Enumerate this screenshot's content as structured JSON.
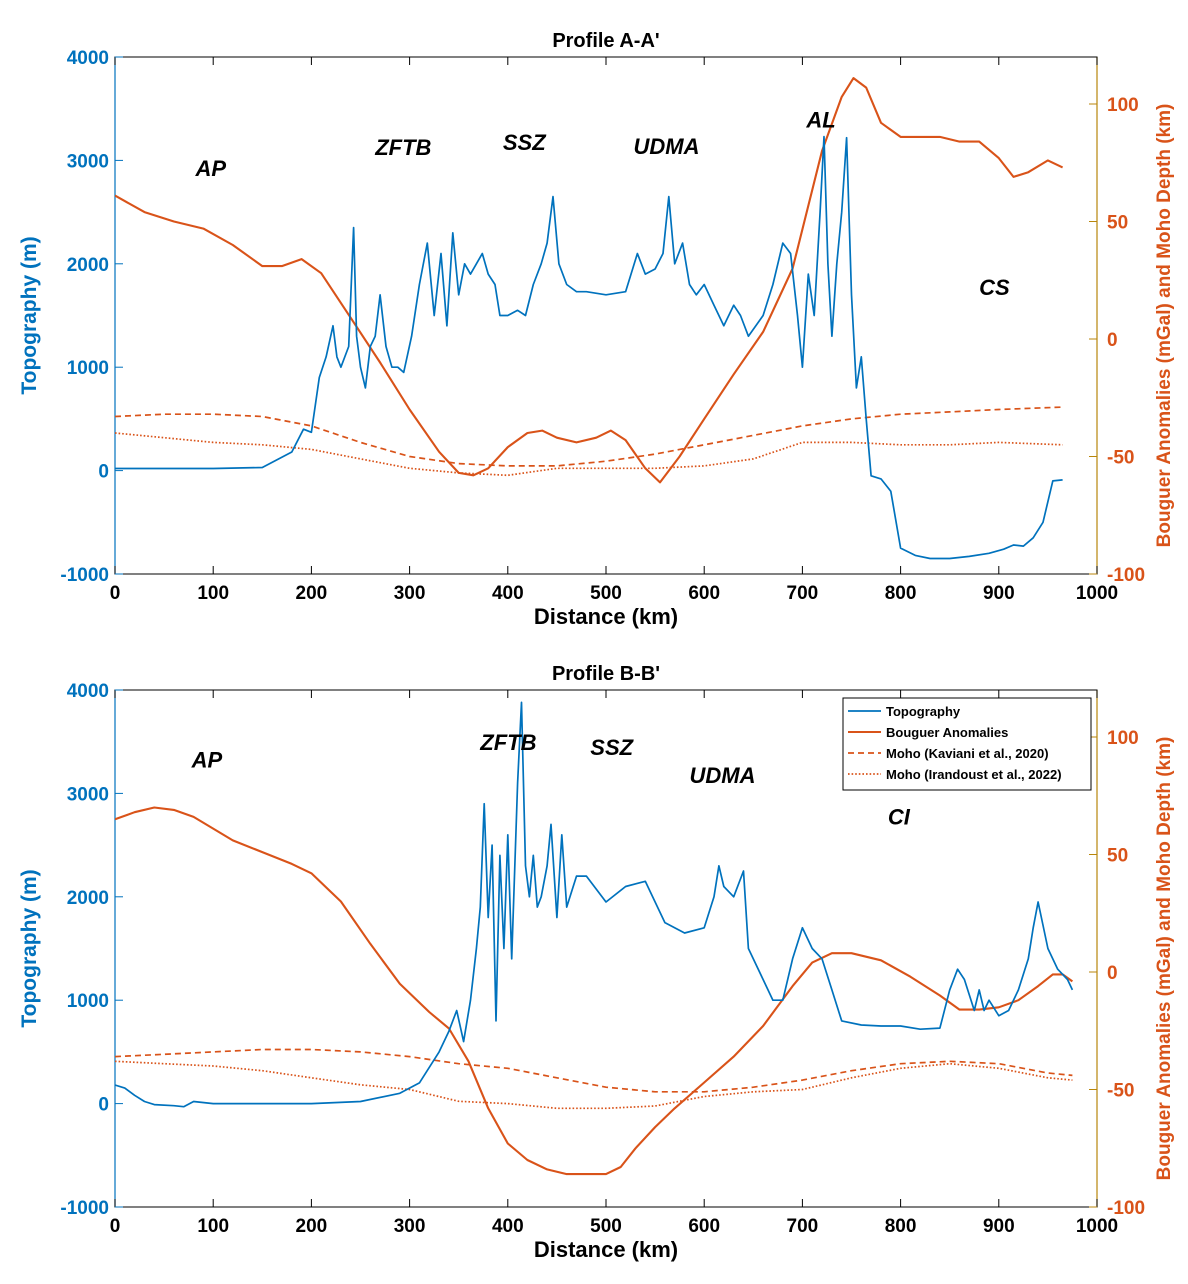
{
  "colors": {
    "topography": "#0072BD",
    "bouguer": "#D95319",
    "moho_right_axis": "#D95319",
    "axis": "#000000"
  },
  "chart_data": [
    {
      "type": "line",
      "title": "Profile A-A'",
      "xlabel": "Distance (km)",
      "ylabel": "Topography (m)",
      "ylabel_right": "Bouguer Anomalies (mGal) and Moho Depth (km)",
      "xlim": [
        0,
        1000
      ],
      "ylim": [
        -1000,
        4000
      ],
      "ylim_right": [
        -100,
        120
      ],
      "x_ticks": [
        0,
        100,
        200,
        300,
        400,
        500,
        600,
        700,
        800,
        900,
        1000
      ],
      "y_ticks": [
        -1000,
        0,
        1000,
        2000,
        3000,
        4000
      ],
      "y_ticks_right": [
        -100,
        -50,
        0,
        50,
        100
      ],
      "grid": false,
      "annotations": [
        {
          "text": "AP",
          "x": 82,
          "y": 2850
        },
        {
          "text": "ZFTB",
          "x": 265,
          "y": 3050
        },
        {
          "text": "SSZ",
          "x": 395,
          "y": 3100
        },
        {
          "text": "UDMA",
          "x": 528,
          "y": 3060
        },
        {
          "text": "AL",
          "x": 704,
          "y": 3320
        },
        {
          "text": "CS",
          "x": 880,
          "y": 1700
        }
      ],
      "series": [
        {
          "name": "Topography",
          "axis": "left",
          "style": "solid",
          "x": [
            0,
            50,
            100,
            150,
            180,
            192,
            200,
            208,
            215,
            222,
            226,
            230,
            238,
            243,
            246,
            250,
            255,
            260,
            265,
            270,
            276,
            282,
            288,
            294,
            302,
            310,
            318,
            325,
            332,
            338,
            344,
            350,
            356,
            362,
            368,
            374,
            380,
            387,
            392,
            400,
            410,
            418,
            426,
            434,
            440,
            446,
            452,
            460,
            470,
            480,
            500,
            520,
            532,
            540,
            550,
            558,
            564,
            570,
            578,
            585,
            592,
            600,
            610,
            620,
            630,
            637,
            645,
            660,
            670,
            680,
            688,
            695,
            700,
            706,
            712,
            718,
            722,
            726,
            730,
            735,
            740,
            745,
            750,
            755,
            760,
            765,
            770,
            780,
            790,
            800,
            815,
            830,
            850,
            870,
            890,
            905,
            915,
            925,
            935,
            945,
            955,
            965
          ],
          "y": [
            20,
            20,
            20,
            30,
            180,
            400,
            370,
            900,
            1100,
            1400,
            1100,
            1000,
            1200,
            2350,
            1300,
            1000,
            800,
            1200,
            1300,
            1700,
            1200,
            1000,
            1000,
            950,
            1300,
            1800,
            2200,
            1500,
            2100,
            1400,
            2300,
            1700,
            2000,
            1900,
            2000,
            2100,
            1900,
            1800,
            1500,
            1500,
            1550,
            1500,
            1800,
            2000,
            2200,
            2650,
            2000,
            1800,
            1730,
            1730,
            1700,
            1730,
            2100,
            1900,
            1950,
            2100,
            2650,
            2000,
            2200,
            1800,
            1700,
            1800,
            1600,
            1400,
            1600,
            1500,
            1300,
            1500,
            1800,
            2200,
            2100,
            1500,
            1000,
            1900,
            1500,
            2500,
            3230,
            2000,
            1300,
            2000,
            2500,
            3220,
            1700,
            800,
            1100,
            500,
            -50,
            -80,
            -200,
            -750,
            -820,
            -850,
            -850,
            -830,
            -800,
            -760,
            -720,
            -730,
            -650,
            -500,
            -100,
            -90
          ]
        },
        {
          "name": "Bouguer Anomalies",
          "axis": "right",
          "style": "solid",
          "x": [
            0,
            30,
            60,
            90,
            120,
            150,
            170,
            190,
            210,
            240,
            270,
            300,
            330,
            350,
            365,
            380,
            400,
            420,
            435,
            450,
            470,
            490,
            505,
            520,
            540,
            555,
            575,
            600,
            630,
            660,
            690,
            720,
            740,
            752,
            765,
            780,
            800,
            840,
            860,
            880,
            900,
            915,
            930,
            950,
            965
          ],
          "y": [
            61,
            54,
            50,
            47,
            40,
            31,
            31,
            34,
            28,
            9,
            -10,
            -30,
            -48,
            -57,
            -58,
            -55,
            -46,
            -40,
            -39,
            -42,
            -44,
            -42,
            -39,
            -43,
            -55,
            -61,
            -50,
            -34,
            -15,
            3,
            30,
            80,
            103,
            111,
            107,
            92,
            86,
            86,
            84,
            84,
            77,
            69,
            71,
            76,
            73
          ]
        },
        {
          "name": "Moho (Kaviani et al., 2020)",
          "axis": "right",
          "style": "dashed",
          "x": [
            0,
            50,
            100,
            150,
            200,
            250,
            300,
            350,
            400,
            450,
            500,
            550,
            600,
            650,
            700,
            750,
            800,
            850,
            900,
            965
          ],
          "y": [
            -33,
            -32,
            -32,
            -33,
            -37,
            -44,
            -50,
            -53,
            -54,
            -54,
            -52,
            -49,
            -45,
            -41,
            -37,
            -34,
            -32,
            -31,
            -30,
            -29
          ]
        },
        {
          "name": "Moho (Irandoust et al., 2022)",
          "axis": "right",
          "style": "dotted",
          "x": [
            0,
            50,
            100,
            150,
            200,
            250,
            300,
            350,
            400,
            450,
            500,
            550,
            600,
            650,
            700,
            750,
            800,
            850,
            900,
            965
          ],
          "y": [
            -40,
            -42,
            -44,
            -45,
            -47,
            -51,
            -55,
            -57,
            -58,
            -55,
            -55,
            -55,
            -54,
            -51,
            -44,
            -44,
            -45,
            -45,
            -44,
            -45
          ]
        }
      ]
    },
    {
      "type": "line",
      "title": "Profile B-B'",
      "xlabel": "Distance (km)",
      "ylabel": "Topography (m)",
      "ylabel_right": "Bouguer Anomalies (mGal) and Moho Depth (km)",
      "xlim": [
        0,
        1000
      ],
      "ylim": [
        -1000,
        4000
      ],
      "ylim_right": [
        -100,
        120
      ],
      "x_ticks": [
        0,
        100,
        200,
        300,
        400,
        500,
        600,
        700,
        800,
        900,
        1000
      ],
      "y_ticks": [
        -1000,
        0,
        1000,
        2000,
        3000,
        4000
      ],
      "y_ticks_right": [
        -100,
        -50,
        0,
        50,
        100
      ],
      "grid": false,
      "legend": {
        "position": "top-right",
        "entries": [
          "Topography",
          "Bouguer Anomalies",
          "Moho (Kaviani et al., 2020)",
          "Moho (Irandoust et al., 2022)"
        ]
      },
      "annotations": [
        {
          "text": "AP",
          "x": 78,
          "y": 3250
        },
        {
          "text": "ZFTB",
          "x": 372,
          "y": 3420
        },
        {
          "text": "SSZ",
          "x": 484,
          "y": 3370
        },
        {
          "text": "UDMA",
          "x": 585,
          "y": 3100
        },
        {
          "text": "CI",
          "x": 787,
          "y": 2700
        }
      ],
      "series": [
        {
          "name": "Topography",
          "axis": "left",
          "style": "solid",
          "x": [
            0,
            10,
            20,
            30,
            40,
            60,
            70,
            80,
            100,
            150,
            200,
            250,
            290,
            310,
            330,
            340,
            348,
            355,
            362,
            368,
            372,
            376,
            380,
            384,
            388,
            392,
            396,
            400,
            404,
            410,
            414,
            418,
            422,
            426,
            430,
            434,
            440,
            444,
            450,
            455,
            460,
            470,
            480,
            500,
            520,
            540,
            560,
            580,
            600,
            610,
            615,
            620,
            630,
            640,
            645,
            660,
            670,
            680,
            690,
            700,
            710,
            720,
            730,
            740,
            760,
            780,
            800,
            820,
            840,
            850,
            858,
            865,
            875,
            880,
            885,
            890,
            900,
            910,
            920,
            930,
            935,
            940,
            950,
            960,
            970,
            975
          ],
          "y": [
            180,
            150,
            80,
            20,
            -10,
            -20,
            -30,
            20,
            0,
            0,
            0,
            20,
            100,
            200,
            500,
            700,
            900,
            600,
            1000,
            1500,
            1900,
            2900,
            1800,
            2500,
            800,
            2400,
            1500,
            2600,
            1400,
            3100,
            3880,
            2300,
            2000,
            2400,
            1900,
            2000,
            2300,
            2700,
            1800,
            2600,
            1900,
            2200,
            2200,
            1950,
            2100,
            2150,
            1750,
            1650,
            1700,
            2000,
            2300,
            2100,
            2000,
            2250,
            1500,
            1200,
            1000,
            1000,
            1400,
            1700,
            1500,
            1400,
            1100,
            800,
            760,
            750,
            750,
            720,
            730,
            1100,
            1300,
            1200,
            900,
            1100,
            900,
            1000,
            850,
            900,
            1100,
            1400,
            1700,
            1950,
            1500,
            1300,
            1200,
            1100
          ]
        },
        {
          "name": "Bouguer Anomalies",
          "axis": "right",
          "style": "solid",
          "x": [
            0,
            20,
            40,
            60,
            80,
            100,
            120,
            150,
            180,
            200,
            230,
            260,
            290,
            320,
            340,
            360,
            380,
            400,
            420,
            440,
            460,
            480,
            500,
            515,
            530,
            550,
            570,
            600,
            630,
            660,
            690,
            710,
            730,
            750,
            780,
            810,
            840,
            860,
            880,
            900,
            920,
            940,
            955,
            965,
            975
          ],
          "y": [
            65,
            68,
            70,
            69,
            66,
            61,
            56,
            51,
            46,
            42,
            30,
            12,
            -5,
            -17,
            -24,
            -38,
            -58,
            -73,
            -80,
            -84,
            -86,
            -86,
            -86,
            -83,
            -75,
            -66,
            -58,
            -47,
            -36,
            -23,
            -6,
            4,
            8,
            8,
            5,
            -2,
            -10,
            -16,
            -16,
            -15,
            -12,
            -6,
            -1,
            -1,
            -4
          ]
        },
        {
          "name": "Moho (Kaviani et al., 2020)",
          "axis": "right",
          "style": "dashed",
          "x": [
            0,
            50,
            100,
            150,
            200,
            250,
            300,
            350,
            400,
            450,
            500,
            550,
            600,
            650,
            700,
            750,
            800,
            850,
            900,
            950,
            975
          ],
          "y": [
            -36,
            -35,
            -34,
            -33,
            -33,
            -34,
            -36,
            -39,
            -41,
            -45,
            -49,
            -51,
            -51,
            -49,
            -46,
            -42,
            -39,
            -38,
            -39,
            -43,
            -44
          ]
        },
        {
          "name": "Moho (Irandoust et al., 2022)",
          "axis": "right",
          "style": "dotted",
          "x": [
            0,
            50,
            100,
            150,
            200,
            250,
            300,
            350,
            400,
            450,
            500,
            550,
            600,
            650,
            700,
            750,
            800,
            850,
            900,
            950,
            975
          ],
          "y": [
            -38,
            -39,
            -40,
            -42,
            -45,
            -48,
            -50,
            -55,
            -56,
            -58,
            -58,
            -57,
            -53,
            -51,
            -50,
            -45,
            -41,
            -39,
            -41,
            -45,
            -46
          ]
        }
      ]
    }
  ]
}
